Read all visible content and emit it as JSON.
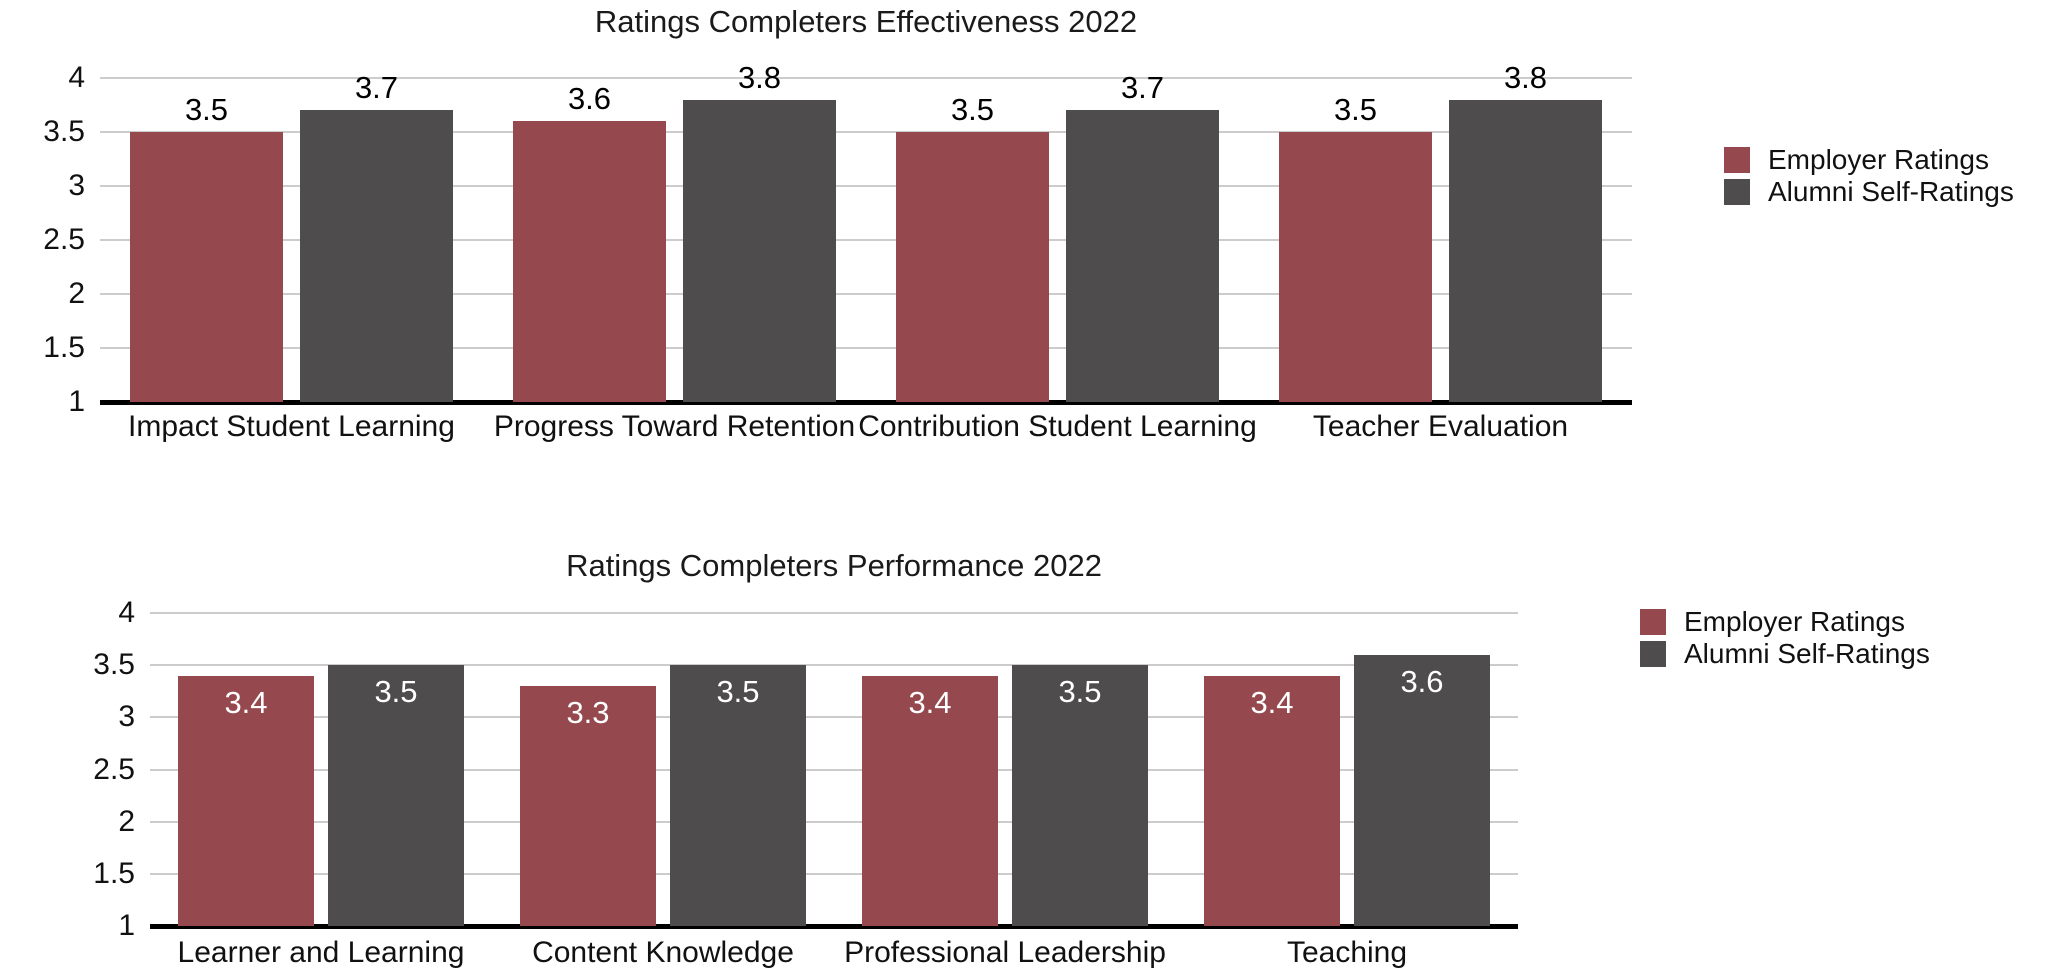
{
  "colors": {
    "employer": "#95494E",
    "alumni": "#4E4C4D",
    "gridline": "#cccccc",
    "axis_line": "#000000",
    "value_label_above": "#000000",
    "value_label_inside": "#ffffff",
    "background": "#ffffff"
  },
  "chart_data": [
    {
      "type": "bar",
      "title": "Ratings Completers Effectiveness 2022",
      "categories": [
        "Impact Student Learning",
        "Progress Toward Retention",
        "Contribution Student Learning",
        "Teacher Evaluation"
      ],
      "series": [
        {
          "name": "Employer Ratings",
          "color": "#95494E",
          "values": [
            3.5,
            3.6,
            3.5,
            3.5
          ]
        },
        {
          "name": "Alumni Self-Ratings",
          "color": "#4E4C4D",
          "values": [
            3.7,
            3.8,
            3.7,
            3.8
          ]
        }
      ],
      "xlabel": "",
      "ylabel": "",
      "ylim": [
        1,
        4
      ],
      "ytick_labels": [
        "4",
        "3.5",
        "3",
        "2.5",
        "2",
        "1.5",
        "1"
      ],
      "ytick_values": [
        4,
        3.5,
        3,
        2.5,
        2,
        1.5,
        1
      ],
      "grid": true,
      "legend_position": "right",
      "value_labels": "above"
    },
    {
      "type": "bar",
      "title": "Ratings Completers Performance 2022",
      "categories": [
        "Learner and Learning",
        "Content Knowledge",
        "Professional Leadership",
        "Teaching"
      ],
      "series": [
        {
          "name": "Employer Ratings",
          "color": "#95494E",
          "values": [
            3.4,
            3.3,
            3.4,
            3.4
          ]
        },
        {
          "name": "Alumni Self-Ratings",
          "color": "#4E4C4D",
          "values": [
            3.5,
            3.5,
            3.5,
            3.6
          ]
        }
      ],
      "xlabel": "",
      "ylabel": "",
      "ylim": [
        1,
        4
      ],
      "ytick_labels": [
        "4",
        "3.5",
        "3",
        "2.5",
        "2",
        "1.5",
        "1"
      ],
      "ytick_values": [
        4,
        3.5,
        3,
        2.5,
        2,
        1.5,
        1
      ],
      "grid": true,
      "legend_position": "right",
      "value_labels": "inside"
    }
  ]
}
